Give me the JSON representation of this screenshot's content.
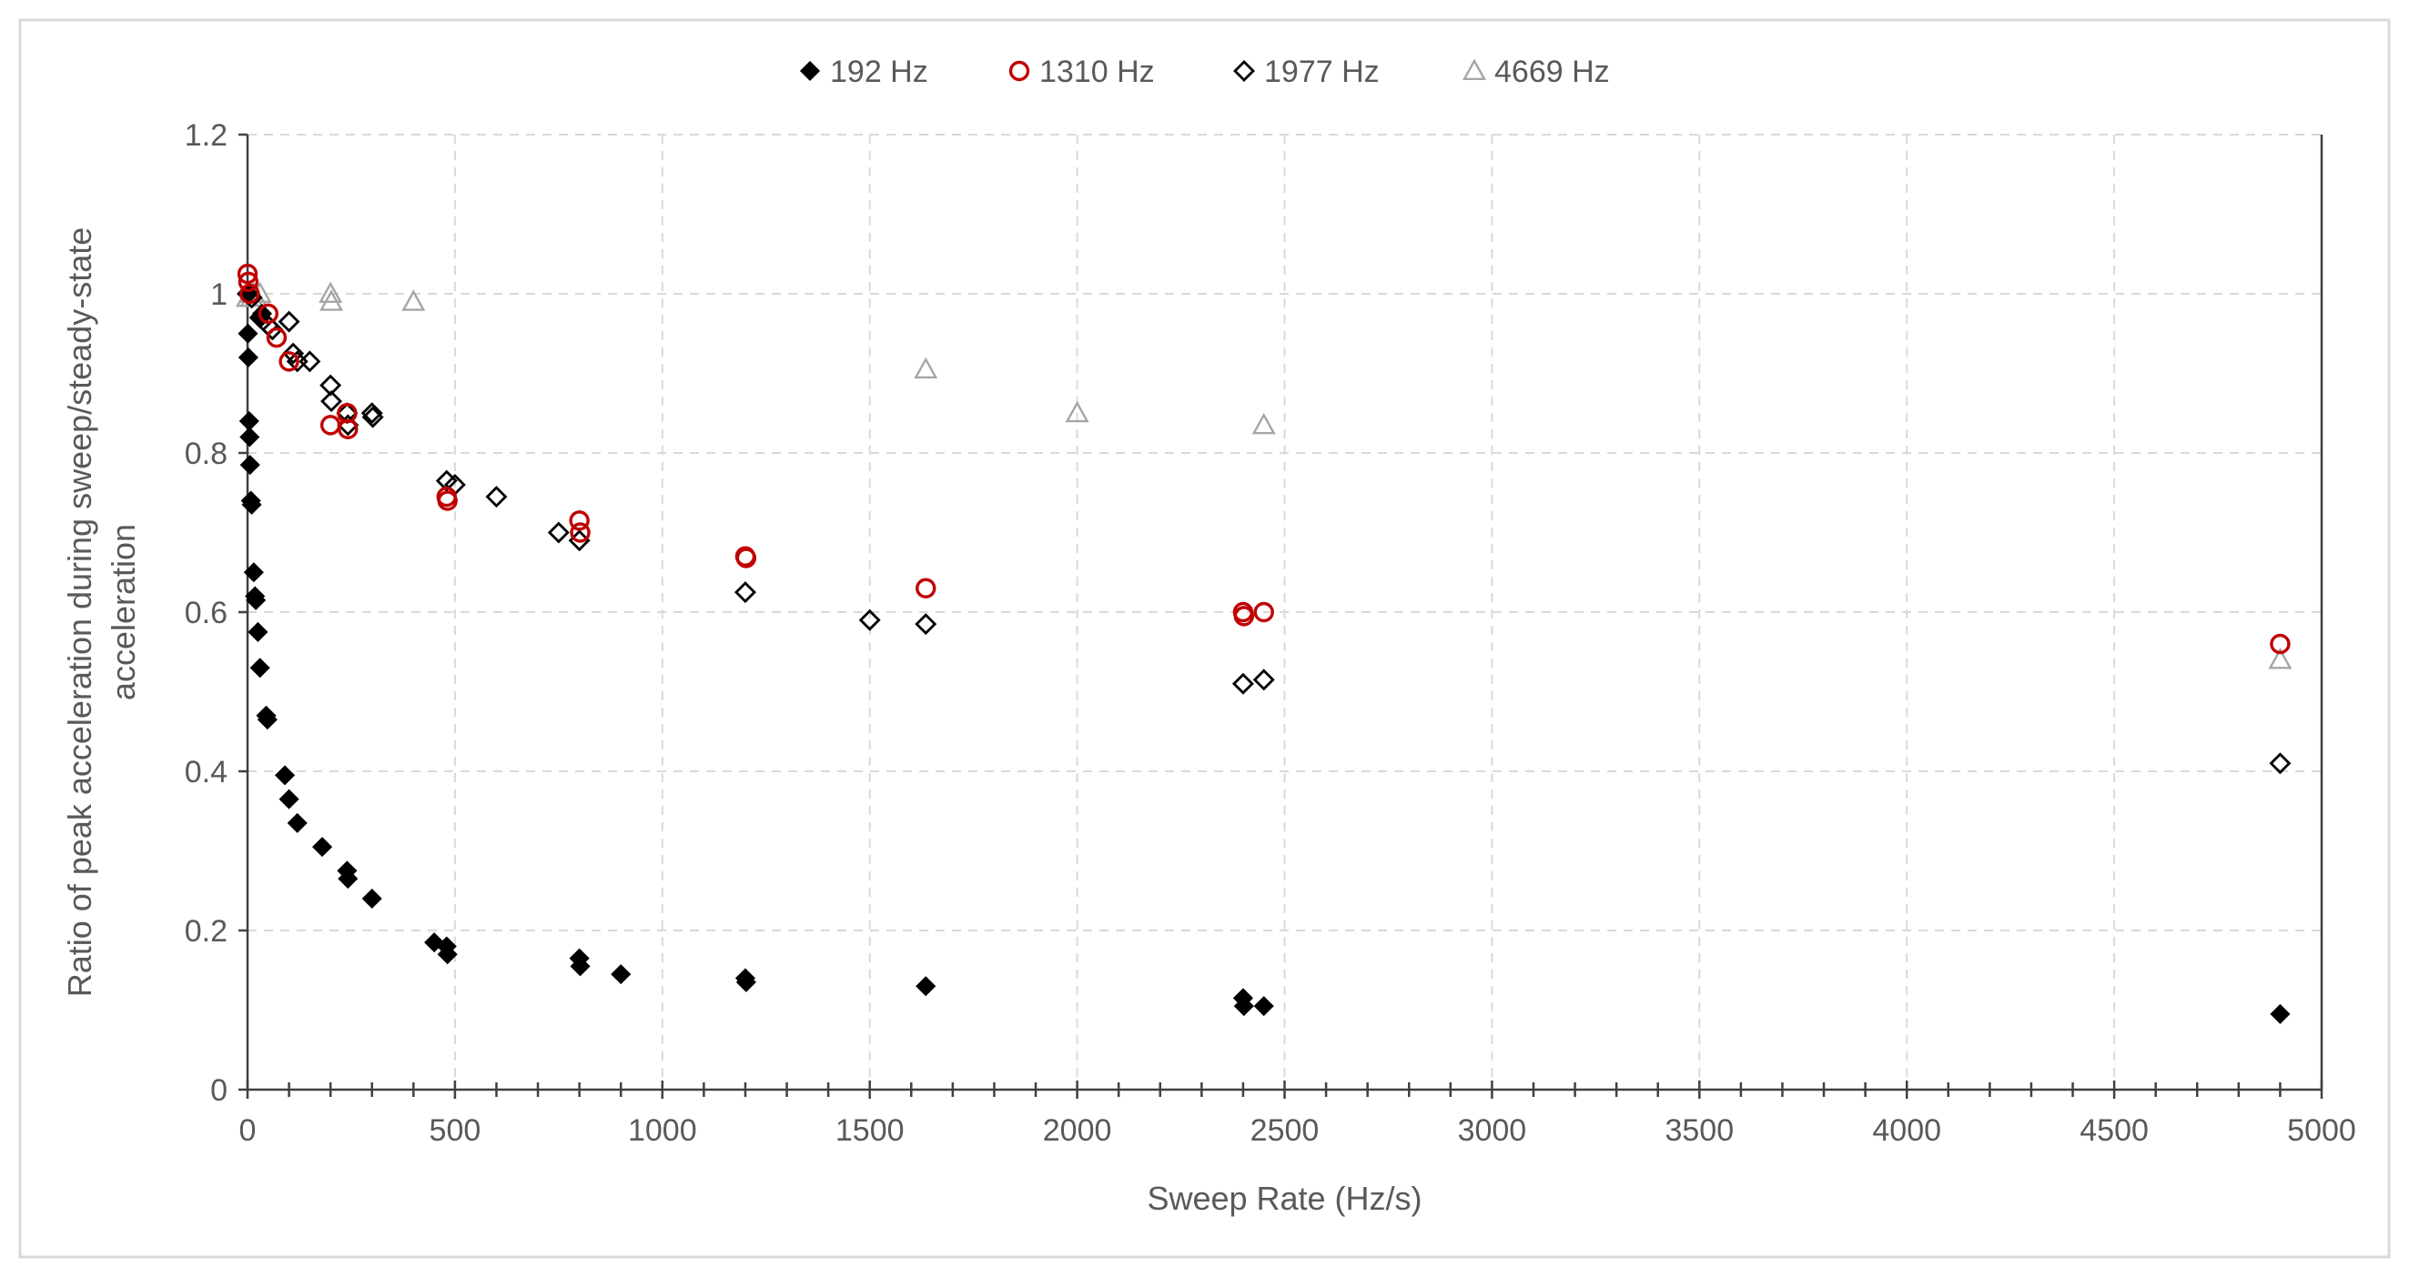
{
  "chart_data": {
    "type": "scatter",
    "title": "",
    "xlabel": "Sweep Rate (Hz/s)",
    "ylabel_lines": [
      "Ratio of peak acceleration during sweep/steady-state",
      "acceleration"
    ],
    "xlim": [
      0,
      5000
    ],
    "ylim": [
      0,
      1.2
    ],
    "x_ticks": [
      0,
      500,
      1000,
      1500,
      2000,
      2500,
      3000,
      3500,
      4000,
      4500,
      5000
    ],
    "y_ticks": [
      0,
      0.2,
      0.4,
      0.6,
      0.8,
      1,
      1.2
    ],
    "x_minor_step": 100,
    "grid": true,
    "legend_position": "top",
    "series": [
      {
        "name": "192 Hz",
        "marker": "filled-diamond",
        "color": "#000000",
        "points": [
          [
            0,
            1.0
          ],
          [
            1,
            0.95
          ],
          [
            2,
            0.92
          ],
          [
            4,
            0.84
          ],
          [
            5,
            0.82
          ],
          [
            6,
            0.785
          ],
          [
            8,
            0.74
          ],
          [
            10,
            0.735
          ],
          [
            15,
            0.65
          ],
          [
            18,
            0.62
          ],
          [
            20,
            0.615
          ],
          [
            25,
            0.575
          ],
          [
            30,
            0.53
          ],
          [
            45,
            0.47
          ],
          [
            48,
            0.465
          ],
          [
            90,
            0.395
          ],
          [
            100,
            0.365
          ],
          [
            120,
            0.335
          ],
          [
            180,
            0.305
          ],
          [
            240,
            0.275
          ],
          [
            242,
            0.265
          ],
          [
            300,
            0.24
          ],
          [
            450,
            0.185
          ],
          [
            480,
            0.18
          ],
          [
            482,
            0.17
          ],
          [
            800,
            0.165
          ],
          [
            802,
            0.155
          ],
          [
            900,
            0.145
          ],
          [
            1200,
            0.14
          ],
          [
            1202,
            0.135
          ],
          [
            1635,
            0.13
          ],
          [
            2400,
            0.115
          ],
          [
            2402,
            0.105
          ],
          [
            2450,
            0.105
          ],
          [
            4900,
            0.095
          ],
          [
            30,
            0.97
          ],
          [
            35,
            0.975
          ]
        ]
      },
      {
        "name": "1310 Hz",
        "marker": "open-circle",
        "color": "#c00000",
        "points": [
          [
            0,
            1.025
          ],
          [
            2,
            1.015
          ],
          [
            5,
            1.0
          ],
          [
            50,
            0.975
          ],
          [
            70,
            0.945
          ],
          [
            100,
            0.915
          ],
          [
            200,
            0.835
          ],
          [
            240,
            0.85
          ],
          [
            242,
            0.83
          ],
          [
            480,
            0.745
          ],
          [
            482,
            0.74
          ],
          [
            800,
            0.715
          ],
          [
            802,
            0.7
          ],
          [
            1200,
            0.67
          ],
          [
            1202,
            0.668
          ],
          [
            1635,
            0.63
          ],
          [
            2400,
            0.6
          ],
          [
            2402,
            0.595
          ],
          [
            2450,
            0.6
          ],
          [
            4900,
            0.56
          ]
        ]
      },
      {
        "name": "1977 Hz",
        "marker": "open-diamond",
        "color": "#000000",
        "points": [
          [
            0,
            1.0
          ],
          [
            10,
            0.995
          ],
          [
            30,
            0.97
          ],
          [
            50,
            0.96
          ],
          [
            60,
            0.955
          ],
          [
            100,
            0.965
          ],
          [
            110,
            0.925
          ],
          [
            120,
            0.915
          ],
          [
            150,
            0.915
          ],
          [
            200,
            0.885
          ],
          [
            202,
            0.865
          ],
          [
            240,
            0.85
          ],
          [
            242,
            0.835
          ],
          [
            300,
            0.85
          ],
          [
            302,
            0.845
          ],
          [
            480,
            0.765
          ],
          [
            500,
            0.76
          ],
          [
            600,
            0.745
          ],
          [
            750,
            0.7
          ],
          [
            800,
            0.69
          ],
          [
            1200,
            0.625
          ],
          [
            1500,
            0.59
          ],
          [
            1635,
            0.585
          ],
          [
            2400,
            0.51
          ],
          [
            2450,
            0.515
          ],
          [
            4900,
            0.41
          ]
        ]
      },
      {
        "name": "4669 Hz",
        "marker": "open-triangle",
        "color": "#a6a6a6",
        "points": [
          [
            0,
            0.995
          ],
          [
            5,
            1.0
          ],
          [
            10,
            0.995
          ],
          [
            15,
            1.0
          ],
          [
            20,
            0.995
          ],
          [
            30,
            1.0
          ],
          [
            200,
            1.0
          ],
          [
            202,
            0.99
          ],
          [
            400,
            0.99
          ],
          [
            1635,
            0.905
          ],
          [
            2000,
            0.85
          ],
          [
            2450,
            0.835
          ],
          [
            4900,
            0.54
          ]
        ]
      }
    ]
  }
}
